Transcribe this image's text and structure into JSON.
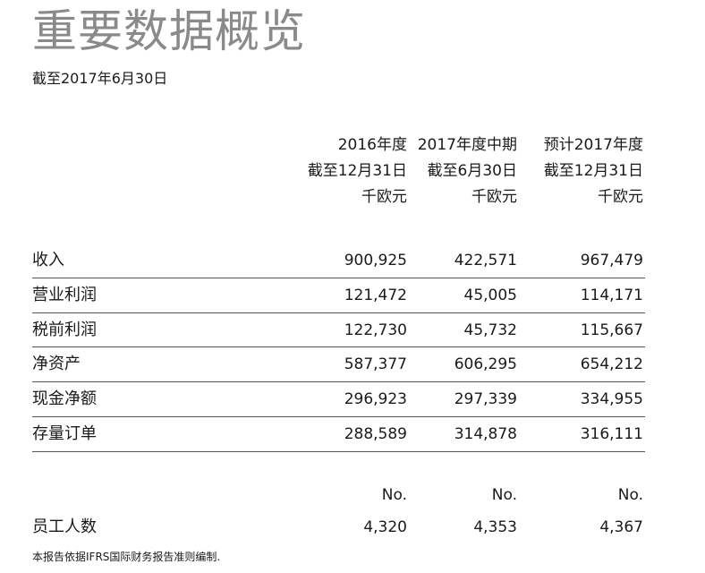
{
  "title": "重要数据概览",
  "subtitle": "截至2017年6月30日",
  "columns": [
    {
      "line1": "2016年度",
      "line2": "截至12月31日",
      "unit": "千欧元"
    },
    {
      "line1": "2017年度中期",
      "line2": "截至6月30日",
      "unit": "千欧元"
    },
    {
      "line1": "预计2017年度",
      "line2": "截至12月31日",
      "unit": "千欧元"
    }
  ],
  "rows": [
    {
      "label": "收入",
      "values": [
        "900,925",
        "422,571",
        "967,479"
      ]
    },
    {
      "label": "营业利润",
      "values": [
        "121,472",
        "45,005",
        "114,171"
      ]
    },
    {
      "label": "税前利润",
      "values": [
        "122,730",
        "45,732",
        "115,667"
      ]
    },
    {
      "label": "净资产",
      "values": [
        "587,377",
        "606,295",
        "654,212"
      ]
    },
    {
      "label": "现金净额",
      "values": [
        "296,923",
        "297,339",
        "334,955"
      ]
    },
    {
      "label": "存量订单",
      "values": [
        "288,589",
        "314,878",
        "316,111"
      ]
    }
  ],
  "employees": {
    "unit_labels": [
      "No.",
      "No.",
      "No."
    ],
    "label": "员工人数",
    "values": [
      "4,320",
      "4,353",
      "4,367"
    ]
  },
  "footnote": "本报告依据IFRS国际财务报告准则编制."
}
